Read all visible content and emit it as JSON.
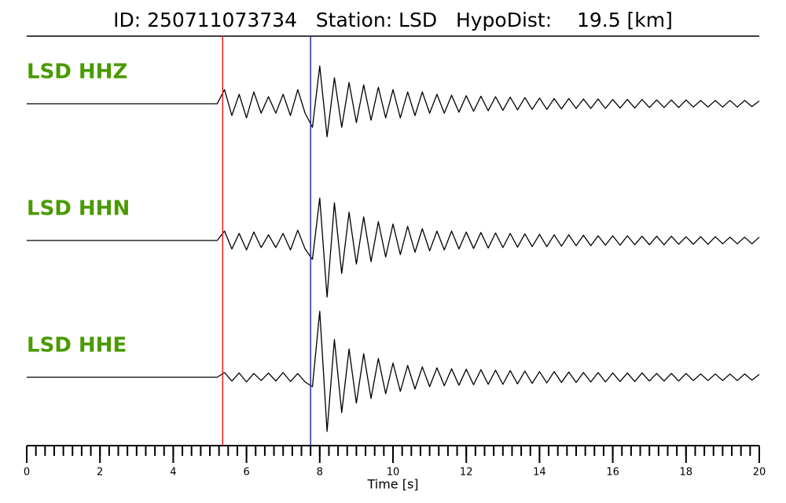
{
  "chart_data": {
    "type": "line",
    "title": "ID: 250711073734   Station: LSD   HypoDist:    19.5 [km]",
    "xlabel": "Time [s]",
    "xlim": [
      0,
      20
    ],
    "xticks": [
      0,
      2,
      4,
      6,
      8,
      10,
      12,
      14,
      16,
      18,
      20
    ],
    "xminor_step": 0.25,
    "markers": [
      {
        "value": 5.35,
        "color": "#e31a1c"
      },
      {
        "value": 7.75,
        "color": "#1f2fa8"
      }
    ],
    "label_color": "#4a9a00",
    "x": [
      0,
      0.2,
      0.4,
      0.6,
      0.8,
      1,
      1.2,
      1.4,
      1.6,
      1.8,
      2,
      2.2,
      2.4,
      2.6,
      2.8,
      3,
      3.2,
      3.4,
      3.6,
      3.8,
      4,
      4.2,
      4.4,
      4.6,
      4.8,
      5,
      5.2,
      5.4,
      5.6,
      5.8,
      6,
      6.2,
      6.4,
      6.6,
      6.8,
      7,
      7.2,
      7.4,
      7.6,
      7.8,
      8,
      8.2,
      8.4,
      8.6,
      8.8,
      9,
      9.2,
      9.4,
      9.6,
      9.8,
      10,
      10.2,
      10.4,
      10.6,
      10.8,
      11,
      11.2,
      11.4,
      11.6,
      11.8,
      12,
      12.2,
      12.4,
      12.6,
      12.8,
      13,
      13.2,
      13.4,
      13.6,
      13.8,
      14,
      14.2,
      14.4,
      14.6,
      14.8,
      15,
      15.2,
      15.4,
      15.6,
      15.8,
      16,
      16.2,
      16.4,
      16.6,
      16.8,
      17,
      17.2,
      17.4,
      17.6,
      17.8,
      18,
      18.2,
      18.4,
      18.6,
      18.8,
      19,
      19.2,
      19.4,
      19.6,
      19.8,
      20
    ],
    "series": [
      {
        "name": "LSD HHZ",
        "color": "#000000",
        "values": [
          0,
          0,
          0,
          0,
          0,
          0,
          0,
          0,
          0,
          0,
          0,
          0,
          0,
          0,
          0,
          0,
          0,
          0,
          0,
          0,
          0,
          0,
          0,
          0,
          0,
          0,
          0,
          0.3,
          -0.25,
          0.2,
          -0.3,
          0.25,
          -0.2,
          0.15,
          -0.2,
          0.2,
          -0.25,
          0.3,
          -0.2,
          -0.5,
          0.8,
          -0.7,
          0.55,
          -0.5,
          0.45,
          -0.4,
          0.4,
          -0.35,
          0.35,
          -0.3,
          0.3,
          -0.3,
          0.25,
          -0.25,
          0.25,
          -0.2,
          0.2,
          -0.2,
          0.18,
          -0.18,
          0.17,
          -0.16,
          0.16,
          -0.15,
          0.15,
          -0.14,
          0.14,
          -0.13,
          0.13,
          -0.12,
          0.12,
          -0.12,
          0.11,
          -0.11,
          0.11,
          -0.1,
          0.1,
          -0.1,
          0.1,
          -0.1,
          0.09,
          -0.09,
          0.09,
          -0.09,
          0.09,
          -0.08,
          0.08,
          -0.08,
          0.08,
          -0.08,
          0.08,
          -0.07,
          0.07,
          -0.07,
          0.07,
          -0.07,
          0.07,
          -0.07,
          0.07,
          -0.06,
          0.06
        ]
      },
      {
        "name": "LSD HHN",
        "color": "#000000",
        "values": [
          0,
          0,
          0,
          0,
          0,
          0,
          0,
          0,
          0,
          0,
          0,
          0,
          0,
          0,
          0,
          0,
          0,
          0,
          0,
          0,
          0,
          0,
          0,
          0,
          0,
          0,
          0,
          0.2,
          -0.18,
          0.15,
          -0.2,
          0.18,
          -0.15,
          0.12,
          -0.15,
          0.15,
          -0.2,
          0.22,
          -0.18,
          -0.4,
          0.9,
          -1.2,
          0.8,
          -0.7,
          0.6,
          -0.5,
          0.5,
          -0.45,
          0.4,
          -0.35,
          0.35,
          -0.3,
          0.3,
          -0.25,
          0.25,
          -0.22,
          0.2,
          -0.2,
          0.2,
          -0.18,
          0.18,
          -0.17,
          0.17,
          -0.16,
          0.16,
          -0.15,
          0.15,
          -0.14,
          0.14,
          -0.13,
          0.13,
          -0.13,
          0.12,
          -0.12,
          0.12,
          -0.11,
          0.11,
          -0.11,
          0.1,
          -0.1,
          0.1,
          -0.1,
          0.1,
          -0.09,
          0.09,
          -0.09,
          0.09,
          -0.09,
          0.09,
          -0.08,
          0.08,
          -0.08,
          0.08,
          -0.08,
          0.08,
          -0.07,
          0.07,
          -0.07,
          0.07,
          -0.07,
          0.07
        ]
      },
      {
        "name": "LSD HHE",
        "color": "#000000",
        "values": [
          0,
          0,
          0,
          0,
          0,
          0,
          0,
          0,
          0,
          0,
          0,
          0,
          0,
          0,
          0,
          0,
          0,
          0,
          0,
          0,
          0,
          0,
          0,
          0,
          0,
          0,
          0,
          0.1,
          -0.08,
          0.09,
          -0.1,
          0.08,
          -0.07,
          0.09,
          -0.08,
          0.1,
          -0.09,
          0.08,
          -0.1,
          -0.2,
          1.4,
          -1.15,
          0.8,
          -0.75,
          0.6,
          -0.55,
          0.5,
          -0.45,
          0.4,
          -0.35,
          0.3,
          -0.3,
          0.25,
          -0.25,
          0.22,
          -0.2,
          0.2,
          -0.18,
          0.18,
          -0.17,
          0.17,
          -0.16,
          0.16,
          -0.15,
          0.15,
          -0.15,
          0.14,
          -0.14,
          0.13,
          -0.13,
          0.12,
          -0.12,
          0.12,
          -0.11,
          0.11,
          -0.11,
          0.1,
          -0.1,
          0.1,
          -0.1,
          0.09,
          -0.09,
          0.09,
          -0.09,
          0.09,
          -0.08,
          0.08,
          -0.08,
          0.08,
          -0.08,
          0.08,
          -0.07,
          0.07,
          -0.07,
          0.07,
          -0.07,
          0.07,
          -0.07,
          0.07,
          -0.06,
          0.06
        ]
      }
    ]
  }
}
